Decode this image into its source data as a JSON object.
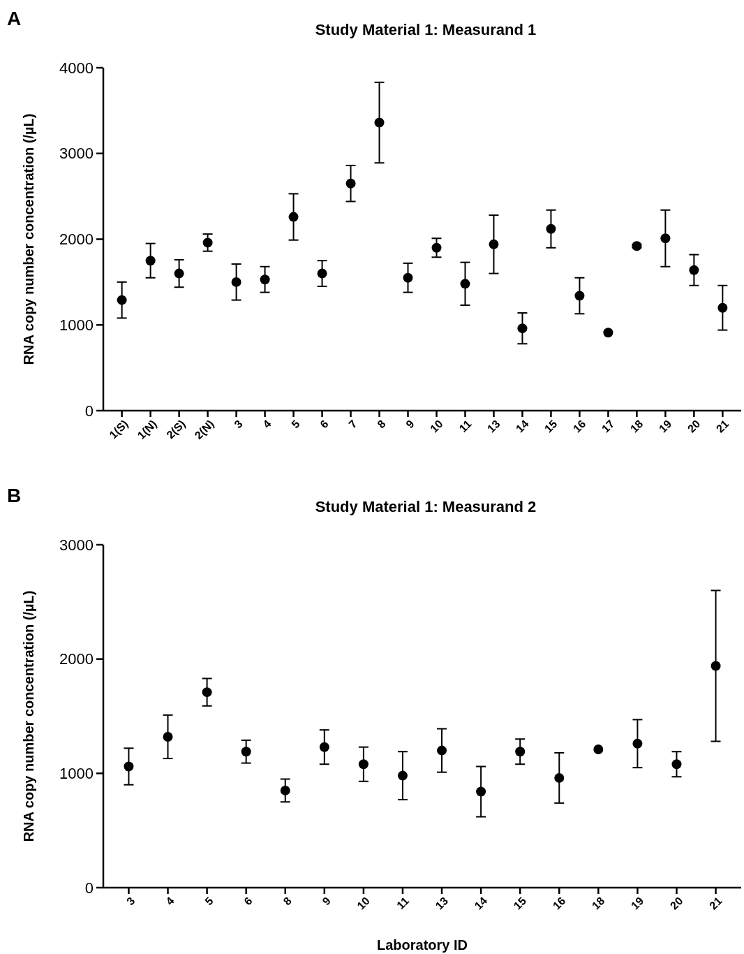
{
  "chart_data": [
    {
      "type": "scatter",
      "title": "Study  Material 1: Measurand 1",
      "ylabel": "RNA copy number concentration (/µL)",
      "annotations": [
        "A"
      ],
      "marker": "circle",
      "color": "#000000",
      "categories": [
        "1(S)",
        "1(N)",
        "2(S)",
        "2(N)",
        "3",
        "4",
        "5",
        "6",
        "7",
        "8",
        "9",
        "10",
        "11",
        "13",
        "14",
        "15",
        "16",
        "17",
        "18",
        "19",
        "20",
        "21"
      ],
      "values": [
        1290,
        1750,
        1600,
        1960,
        1500,
        1530,
        2260,
        1600,
        2650,
        3360,
        1550,
        1900,
        1480,
        1940,
        960,
        2120,
        1340,
        910,
        1920,
        2010,
        1640,
        1200
      ],
      "errors": [
        210,
        200,
        160,
        100,
        210,
        150,
        270,
        150,
        210,
        470,
        170,
        110,
        250,
        340,
        180,
        220,
        210,
        null,
        20,
        330,
        180,
        260
      ],
      "ylim": [
        0,
        4000
      ],
      "yticks": [
        0,
        1000,
        2000,
        3000,
        4000
      ]
    },
    {
      "type": "scatter",
      "title": "Study Material 1: Measurand 2",
      "xlabel": "Laboratory ID",
      "ylabel": "RNA copy number concentration (/µL)",
      "annotations": [
        "B"
      ],
      "marker": "circle",
      "color": "#000000",
      "categories": [
        "3",
        "4",
        "5",
        "6",
        "8",
        "9",
        "10",
        "11",
        "13",
        "14",
        "15",
        "16",
        "18",
        "19",
        "20",
        "21"
      ],
      "values": [
        1060,
        1320,
        1710,
        1190,
        850,
        1230,
        1080,
        980,
        1200,
        840,
        1190,
        960,
        1210,
        1260,
        1080,
        1940
      ],
      "errors": [
        160,
        190,
        120,
        100,
        100,
        150,
        150,
        210,
        190,
        220,
        110,
        220,
        null,
        210,
        110,
        660
      ],
      "ylim": [
        0,
        3000
      ],
      "yticks": [
        0,
        1000,
        2000,
        3000
      ]
    }
  ]
}
